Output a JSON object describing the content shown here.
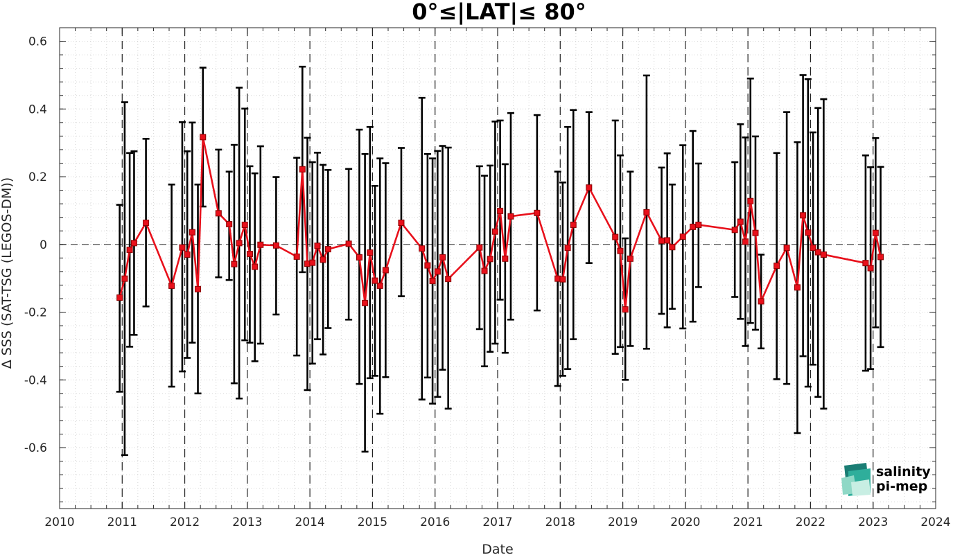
{
  "chart_data": {
    "type": "line",
    "title": "0°≤|LAT|≤ 80°",
    "xlabel": "Date",
    "ylabel": "Δ SSS (SAT-TSG (LEGOS-DM))",
    "xlim": [
      2010,
      2024
    ],
    "ylim": [
      -0.78,
      0.64
    ],
    "xticks": [
      2010,
      2011,
      2012,
      2013,
      2014,
      2015,
      2016,
      2017,
      2018,
      2019,
      2020,
      2021,
      2022,
      2023,
      2024
    ],
    "xtick_labels": [
      "2010",
      "2011",
      "2012",
      "2013",
      "2014",
      "2015",
      "2016",
      "2017",
      "2018",
      "2019",
      "2020",
      "2021",
      "2022",
      "2023",
      "2024"
    ],
    "yticks": [
      0.6,
      0.4,
      0.2,
      0,
      -0.2,
      -0.4,
      -0.6
    ],
    "ytick_labels": [
      "0.6",
      "0.4",
      "0.2",
      "0",
      "-0.2",
      "-0.4",
      "-0.6"
    ],
    "grid": "minor-dotted",
    "zero_line": true,
    "year_boundaries_dashed": [
      2011,
      2012,
      2013,
      2014,
      2015,
      2016,
      2017,
      2018,
      2019,
      2020,
      2021,
      2022,
      2023
    ],
    "series": [
      {
        "color": "#e8101b",
        "errorbar_color": "#000000",
        "x": [
          2010.96,
          2011.04,
          2011.12,
          2011.19,
          2011.38,
          2011.79,
          2011.96,
          2012.04,
          2012.12,
          2012.21,
          2012.29,
          2012.54,
          2012.71,
          2012.79,
          2012.87,
          2012.96,
          2013.04,
          2013.12,
          2013.21,
          2013.46,
          2013.79,
          2013.88,
          2013.96,
          2014.04,
          2014.12,
          2014.21,
          2014.29,
          2014.62,
          2014.79,
          2014.88,
          2014.96,
          2015.04,
          2015.12,
          2015.21,
          2015.46,
          2015.79,
          2015.88,
          2015.96,
          2016.04,
          2016.12,
          2016.21,
          2016.71,
          2016.79,
          2016.88,
          2016.96,
          2017.04,
          2017.12,
          2017.21,
          2017.63,
          2017.96,
          2018.04,
          2018.12,
          2018.21,
          2018.46,
          2018.88,
          2018.96,
          2019.04,
          2019.12,
          2019.38,
          2019.62,
          2019.71,
          2019.79,
          2019.96,
          2020.12,
          2020.21,
          2020.79,
          2020.88,
          2020.96,
          2021.04,
          2021.12,
          2021.21,
          2021.46,
          2021.62,
          2021.79,
          2021.88,
          2021.96,
          2022.04,
          2022.12,
          2022.21,
          2022.88,
          2022.96,
          2023.04,
          2023.12
        ],
        "y": [
          -0.157,
          -0.101,
          -0.016,
          0.004,
          0.064,
          -0.122,
          -0.009,
          -0.03,
          0.036,
          -0.132,
          0.317,
          0.092,
          0.06,
          -0.058,
          0.004,
          0.058,
          -0.028,
          -0.066,
          -0.001,
          -0.003,
          -0.036,
          0.222,
          -0.057,
          -0.054,
          -0.004,
          -0.045,
          -0.014,
          0.002,
          -0.038,
          -0.173,
          -0.024,
          -0.107,
          -0.122,
          -0.076,
          0.064,
          -0.012,
          -0.062,
          -0.108,
          -0.08,
          -0.038,
          -0.102,
          -0.009,
          -0.078,
          -0.043,
          0.038,
          0.099,
          -0.042,
          0.083,
          0.093,
          -0.101,
          -0.103,
          -0.01,
          0.058,
          0.168,
          0.022,
          -0.019,
          -0.192,
          -0.042,
          0.095,
          0.011,
          0.012,
          -0.008,
          0.023,
          0.052,
          0.058,
          0.043,
          0.067,
          0.008,
          0.128,
          0.034,
          -0.168,
          -0.063,
          -0.01,
          -0.127,
          0.086,
          0.035,
          -0.01,
          -0.023,
          -0.03,
          -0.055,
          -0.07,
          0.034,
          -0.037
        ],
        "err_low": [
          -0.435,
          -0.622,
          -0.302,
          -0.267,
          -0.183,
          -0.42,
          -0.375,
          -0.335,
          -0.29,
          -0.44,
          0.112,
          -0.097,
          -0.105,
          -0.41,
          -0.455,
          -0.283,
          -0.29,
          -0.345,
          -0.293,
          -0.207,
          -0.328,
          -0.082,
          -0.43,
          -0.352,
          -0.28,
          -0.325,
          -0.247,
          -0.222,
          -0.412,
          -0.612,
          -0.395,
          -0.388,
          -0.5,
          -0.392,
          -0.153,
          -0.458,
          -0.393,
          -0.47,
          -0.45,
          -0.37,
          -0.485,
          -0.25,
          -0.36,
          -0.317,
          -0.293,
          -0.163,
          -0.32,
          -0.222,
          -0.195,
          -0.418,
          -0.388,
          -0.368,
          -0.28,
          -0.055,
          -0.323,
          -0.303,
          -0.4,
          -0.3,
          -0.308,
          -0.205,
          -0.245,
          -0.19,
          -0.248,
          -0.228,
          -0.126,
          -0.155,
          -0.22,
          -0.3,
          -0.232,
          -0.252,
          -0.307,
          -0.398,
          -0.412,
          -0.557,
          -0.33,
          -0.42,
          -0.355,
          -0.45,
          -0.485,
          -0.373,
          -0.368,
          -0.245,
          -0.303
        ],
        "err_high": [
          0.117,
          0.42,
          0.27,
          0.275,
          0.312,
          0.177,
          0.361,
          0.275,
          0.36,
          0.177,
          0.522,
          0.28,
          0.215,
          0.294,
          0.463,
          0.401,
          0.231,
          0.21,
          0.29,
          0.199,
          0.256,
          0.525,
          0.315,
          0.243,
          0.271,
          0.235,
          0.22,
          0.223,
          0.339,
          0.267,
          0.347,
          0.173,
          0.254,
          0.24,
          0.285,
          0.433,
          0.267,
          0.254,
          0.276,
          0.291,
          0.286,
          0.231,
          0.203,
          0.233,
          0.363,
          0.366,
          0.237,
          0.388,
          0.382,
          0.215,
          0.183,
          0.347,
          0.397,
          0.391,
          0.366,
          0.263,
          0.018,
          0.215,
          0.499,
          0.227,
          0.269,
          0.177,
          0.293,
          0.335,
          0.239,
          0.243,
          0.355,
          0.316,
          0.49,
          0.319,
          -0.03,
          0.27,
          0.391,
          0.302,
          0.5,
          0.488,
          0.331,
          0.403,
          0.429,
          0.263,
          0.228,
          0.314,
          0.229
        ]
      }
    ]
  },
  "logo": {
    "line1": "salinity",
    "line2": "pi-mep",
    "color1": "#1ba596",
    "color2": "#1a5a5e"
  }
}
